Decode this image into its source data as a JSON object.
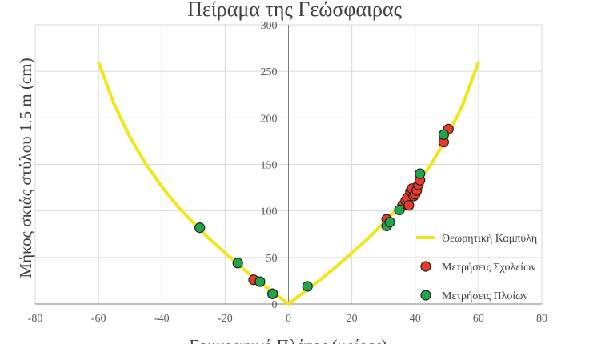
{
  "chart_data": {
    "type": "scatter",
    "title": "Πείραμα της Γεώσφαιρας",
    "xlabel": "Γεωγραφικό Πλάτος (μοίρες)",
    "ylabel": "Μήκος σκιάς στύλου 1.5 m (cm)",
    "xlim": [
      -80,
      80
    ],
    "ylim": [
      0,
      300
    ],
    "xticks": [
      -80,
      -60,
      -40,
      -20,
      0,
      20,
      40,
      60,
      80
    ],
    "yticks": [
      0,
      50,
      100,
      150,
      200,
      250,
      300
    ],
    "grid": true,
    "legend_position": "right",
    "colors": {
      "curve": "#f2e61a",
      "schools": "#e8392b",
      "ships": "#1ea64a",
      "marker_edge": "#1f1f1f",
      "grid": "#d9d9d9",
      "axis": "#7f7f7f"
    },
    "series": [
      {
        "name": "Θεωρητική Καμπύλη",
        "kind": "line",
        "x": [
          -60,
          -55,
          -50,
          -45,
          -40,
          -35,
          -30,
          -25,
          -20,
          -15,
          -10,
          -5,
          0,
          5,
          10,
          15,
          20,
          25,
          30,
          35,
          40,
          45,
          50,
          55,
          60
        ],
        "y": [
          260,
          214,
          179,
          150,
          126,
          105,
          87,
          70,
          55,
          40,
          26,
          13,
          0,
          13,
          26,
          40,
          55,
          70,
          87,
          105,
          126,
          150,
          179,
          214,
          260
        ]
      },
      {
        "name": "Μετρήσεις Σχολείων",
        "kind": "points",
        "x": [
          -11,
          -5,
          31,
          36,
          37,
          37.5,
          38,
          38.5,
          39,
          39.5,
          40,
          40.5,
          41,
          41.5,
          49,
          50.5
        ],
        "y": [
          26,
          11,
          91,
          106,
          111,
          114,
          106,
          121,
          124,
          116,
          118,
          122,
          128,
          133,
          174,
          188
        ]
      },
      {
        "name": "Μετρήσεις Πλοίων",
        "kind": "points",
        "x": [
          -28,
          -16,
          -9,
          -5,
          6,
          31,
          32,
          35,
          41.5,
          49
        ],
        "y": [
          82,
          44,
          24,
          11,
          19,
          84,
          88,
          101,
          140,
          182
        ]
      }
    ]
  }
}
